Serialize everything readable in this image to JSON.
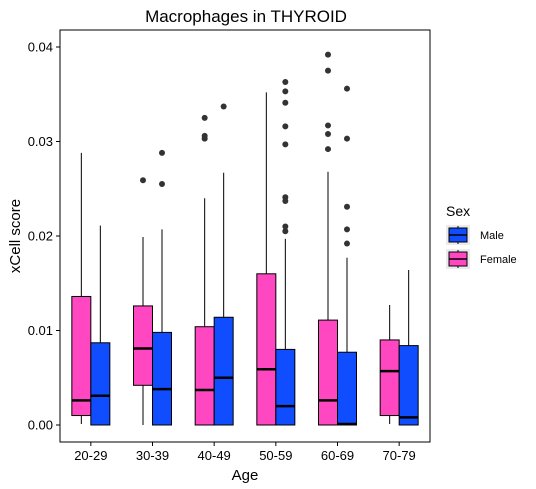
{
  "chart_data": {
    "type": "boxplot",
    "title": "Macrophages in THYROID",
    "xlabel": "Age",
    "ylabel": "xCell score",
    "categories": [
      "20-29",
      "30-39",
      "40-49",
      "50-59",
      "60-69",
      "70-79"
    ],
    "ylim": [
      -0.0018,
      0.0418
    ],
    "yticks": [
      0.0,
      0.01,
      0.02,
      0.03,
      0.04
    ],
    "ytick_labels": [
      "0.00",
      "0.01",
      "0.02",
      "0.03",
      "0.04"
    ],
    "grid": false,
    "legend": {
      "title": "Sex",
      "position": "right"
    },
    "series": [
      {
        "name": "Male",
        "color": "#0F4DFF",
        "boxes": [
          {
            "category": "20-29",
            "whisker_low": 0.0,
            "q1": 0.0,
            "median": 0.0031,
            "q3": 0.0087,
            "whisker_high": 0.0211,
            "outliers": []
          },
          {
            "category": "30-39",
            "whisker_low": 0.0,
            "q1": 0.0,
            "median": 0.0038,
            "q3": 0.0098,
            "whisker_high": 0.0207,
            "outliers": [
              0.0255,
              0.0288
            ]
          },
          {
            "category": "40-49",
            "whisker_low": 0.0,
            "q1": 0.0,
            "median": 0.005,
            "q3": 0.0114,
            "whisker_high": 0.0267,
            "outliers": [
              0.0337
            ]
          },
          {
            "category": "50-59",
            "whisker_low": 0.0,
            "q1": 0.0,
            "median": 0.002,
            "q3": 0.008,
            "whisker_high": 0.0197,
            "outliers": [
              0.0205,
              0.021,
              0.0237,
              0.0241,
              0.0297,
              0.0316,
              0.0341,
              0.0353,
              0.0363
            ]
          },
          {
            "category": "60-69",
            "whisker_low": 0.0,
            "q1": 0.0,
            "median": 0.0001,
            "q3": 0.0077,
            "whisker_high": 0.0177,
            "outliers": [
              0.0192,
              0.0207,
              0.0231,
              0.0303,
              0.0356
            ]
          },
          {
            "category": "70-79",
            "whisker_low": 0.0,
            "q1": 0.0,
            "median": 0.0008,
            "q3": 0.0084,
            "whisker_high": 0.0164,
            "outliers": []
          }
        ]
      },
      {
        "name": "Female",
        "color": "#FF47C2",
        "boxes": [
          {
            "category": "20-29",
            "whisker_low": 0.0001,
            "q1": 0.001,
            "median": 0.0026,
            "q3": 0.0136,
            "whisker_high": 0.0288,
            "outliers": []
          },
          {
            "category": "30-39",
            "whisker_low": 0.0,
            "q1": 0.0042,
            "median": 0.0081,
            "q3": 0.0126,
            "whisker_high": 0.0199,
            "outliers": [
              0.0259
            ]
          },
          {
            "category": "40-49",
            "whisker_low": 0.0,
            "q1": 0.0,
            "median": 0.0037,
            "q3": 0.0104,
            "whisker_high": 0.024,
            "outliers": [
              0.0303,
              0.0306,
              0.0325
            ]
          },
          {
            "category": "50-59",
            "whisker_low": 0.0,
            "q1": 0.0,
            "median": 0.0059,
            "q3": 0.016,
            "whisker_high": 0.0352,
            "outliers": []
          },
          {
            "category": "60-69",
            "whisker_low": 0.0,
            "q1": 0.0,
            "median": 0.0026,
            "q3": 0.0111,
            "whisker_high": 0.0268,
            "outliers": [
              0.0292,
              0.0308,
              0.0317,
              0.0375,
              0.0392
            ]
          },
          {
            "category": "70-79",
            "whisker_low": 0.0001,
            "q1": 0.001,
            "median": 0.0057,
            "q3": 0.009,
            "whisker_high": 0.0127,
            "outliers": []
          }
        ]
      }
    ]
  }
}
